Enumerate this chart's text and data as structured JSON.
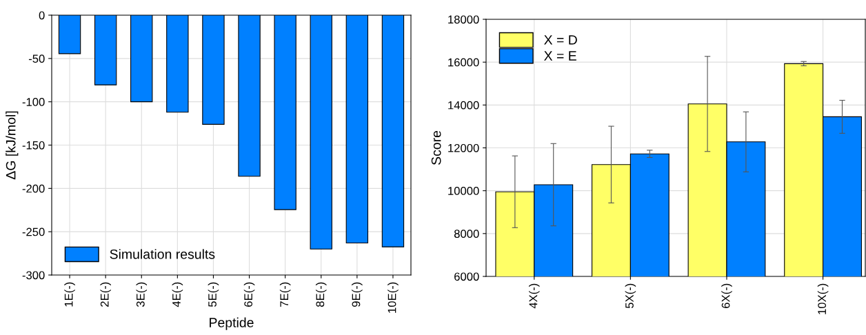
{
  "chart_data": [
    {
      "type": "bar",
      "xlabel": "Peptide",
      "ylabel": "ΔG [kJ/mol]",
      "categories": [
        "1E(-)",
        "2E(-)",
        "3E(-)",
        "4E(-)",
        "5E(-)",
        "6E(-)",
        "7E(-)",
        "8E(-)",
        "9E(-)",
        "10E(-)"
      ],
      "series": [
        {
          "name": "Simulation results",
          "color": "#0080ff",
          "values": [
            -44.5,
            -80.5,
            -100,
            -112,
            -126,
            -186,
            -224.5,
            -270,
            -263,
            -267.5
          ]
        }
      ],
      "ylim": [
        -300,
        0
      ],
      "yticks": [
        -300,
        -250,
        -200,
        -150,
        -100,
        -50,
        0
      ],
      "grid": true,
      "legend": "bottom left"
    },
    {
      "type": "bar",
      "ylabel": "Score",
      "categories": [
        "4X(-)",
        "5X(-)",
        "6X(-)",
        "10X(-)"
      ],
      "series": [
        {
          "name": "X = D",
          "color": "#ffff66",
          "values": [
            9950,
            11220,
            14050,
            15930
          ],
          "errors": [
            1675,
            1790,
            2220,
            100
          ]
        },
        {
          "name": "X = E",
          "color": "#0080ff",
          "values": [
            10280,
            11720,
            12280,
            13450
          ],
          "errors": [
            1920,
            170,
            1400,
            770
          ]
        }
      ],
      "ylim": [
        6000,
        18000
      ],
      "yticks": [
        6000,
        8000,
        10000,
        12000,
        14000,
        16000,
        18000
      ],
      "grid": true,
      "legend": "top left"
    }
  ]
}
